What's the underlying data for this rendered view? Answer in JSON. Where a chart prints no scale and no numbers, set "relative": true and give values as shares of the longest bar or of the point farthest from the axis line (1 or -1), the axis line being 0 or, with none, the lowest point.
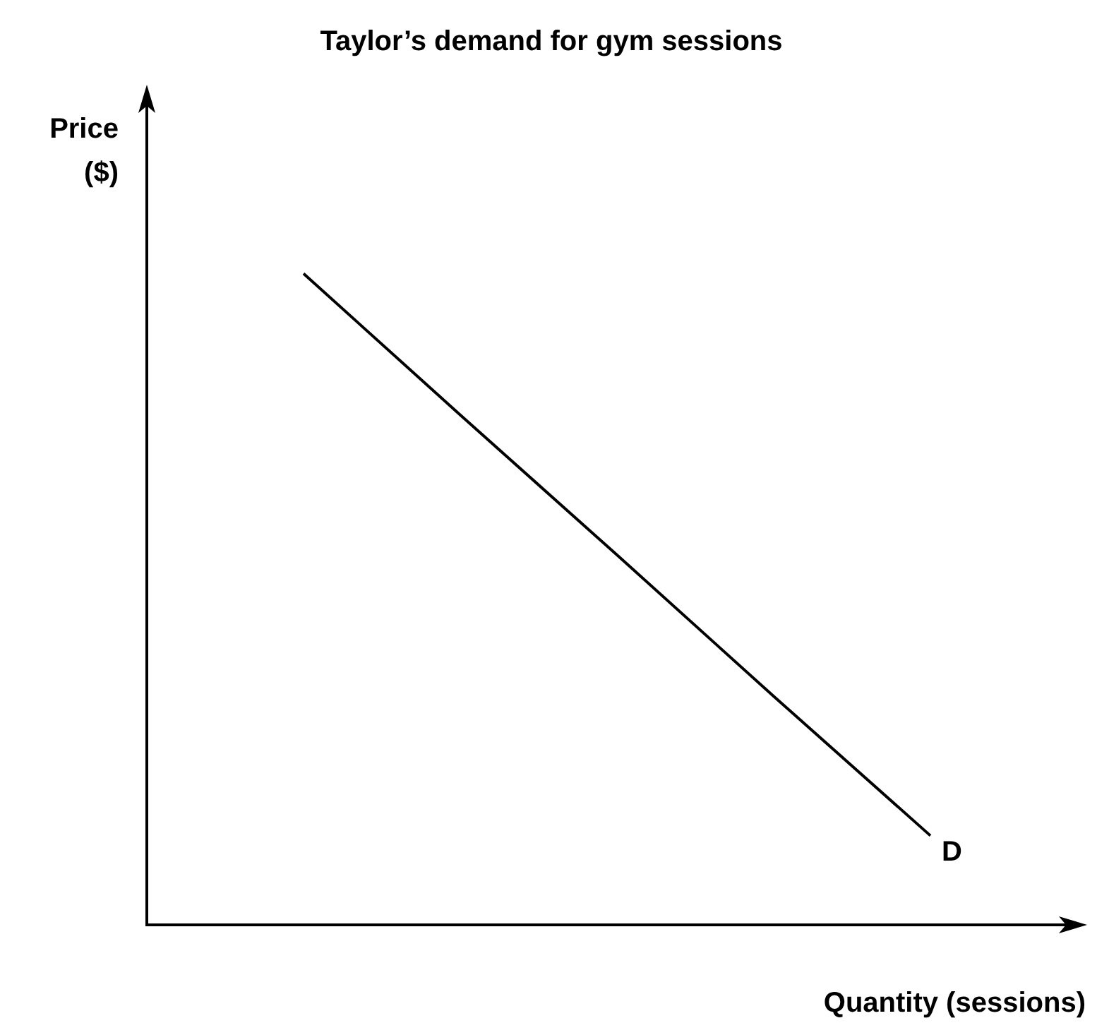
{
  "chart_data": {
    "type": "line",
    "title": "Taylor’s demand for gym sessions",
    "xlabel": "Quantity (sessions)",
    "ylabel": "Price ($)",
    "relative": true,
    "categories": [
      null,
      null,
      null,
      null,
      null,
      null,
      null
    ],
    "series": [
      {
        "name": "D",
        "color": "#000000",
        "values": [
          null,
          1,
          0.783,
          0.568,
          0.351,
          0.137,
          null
        ]
      }
    ],
    "legend": false,
    "marker": "none",
    "line_style": "solid"
  }
}
